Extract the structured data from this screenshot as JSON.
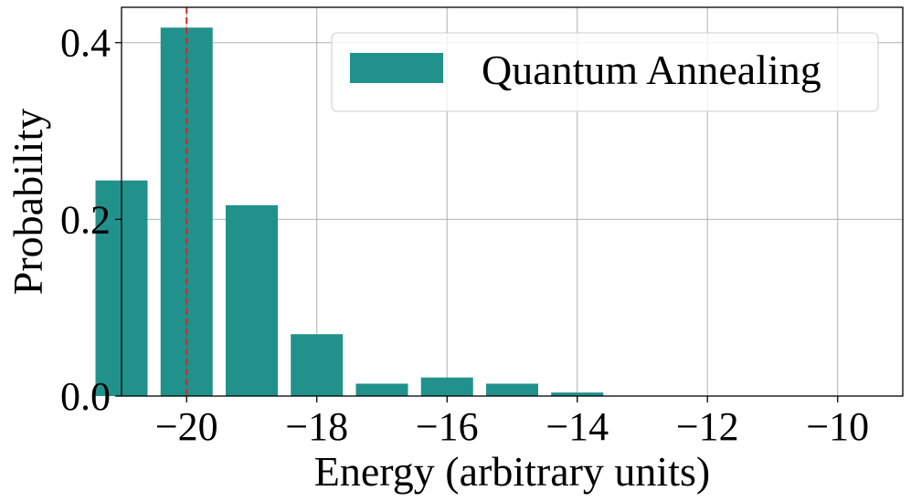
{
  "chart_data": {
    "type": "bar",
    "xlabel": "Energy (arbitrary units)",
    "ylabel": "Probability",
    "xlim": [
      -21,
      -9
    ],
    "ylim": [
      0,
      0.44
    ],
    "x_ticks": [
      -20,
      -18,
      -16,
      -14,
      -12,
      -10
    ],
    "x_tick_labels": [
      "−20",
      "−18",
      "−16",
      "−14",
      "−12",
      "−10"
    ],
    "y_ticks": [
      0.0,
      0.2,
      0.4
    ],
    "y_tick_labels": [
      "0.0",
      "0.2",
      "0.4"
    ],
    "grid": true,
    "legend_position": "top-right",
    "series": [
      {
        "name": "Quantum Annealing",
        "color": "#21918c",
        "x": [
          -21,
          -20,
          -19,
          -18,
          -17,
          -16,
          -15,
          -14
        ],
        "values": [
          0.244,
          0.417,
          0.216,
          0.07,
          0.014,
          0.021,
          0.014,
          0.004
        ]
      }
    ],
    "reference_line": {
      "x": -20,
      "color": "#d62728",
      "style": "dashed"
    }
  }
}
